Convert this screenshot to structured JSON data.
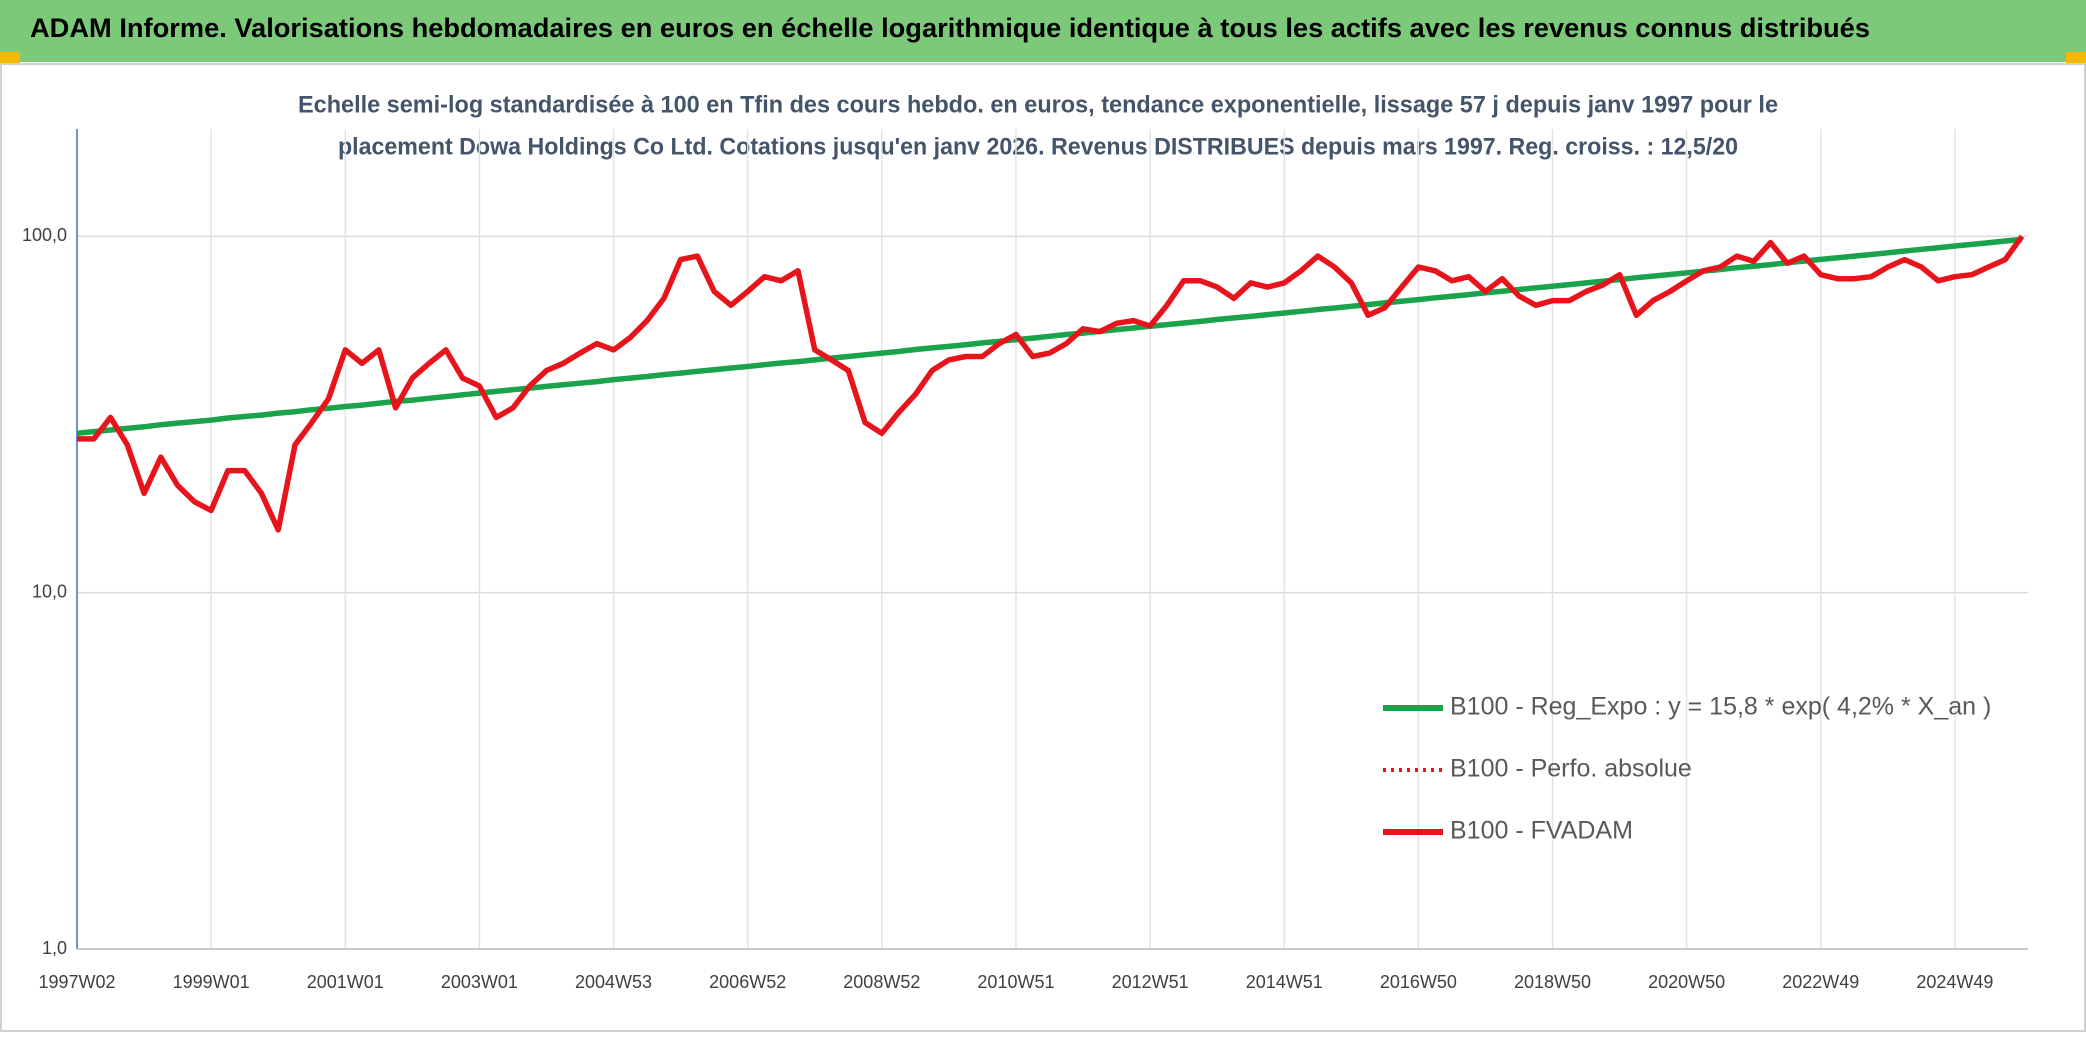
{
  "chart_data": {
    "type": "line",
    "title": "ADAM Informe. Valorisations hebdomadaires en euros en échelle logarithmique identique à tous les actifs avec les revenus connus distribués",
    "subtitle": [
      "Echelle semi-log standardisée à 100 en Tfin des cours hebdo. en euros, tendance exponentielle, lissage 57 j depuis janv 1997 pour le",
      "placement Dowa Holdings Co Ltd. Cotations jusqu'en janv 2026. Revenus DISTRIBUES depuis mars 1997. Reg. croiss. : 12,5/20"
    ],
    "log_y": true,
    "grid": true,
    "ylim": [
      1,
      200
    ],
    "yticks": [
      {
        "value": 1,
        "label": "1,0"
      },
      {
        "value": 10,
        "label": "10,0"
      },
      {
        "value": 100,
        "label": "100,0"
      }
    ],
    "categories": [
      "1997W02",
      null,
      null,
      null,
      null,
      null,
      null,
      null,
      "1999W01",
      null,
      null,
      null,
      null,
      null,
      null,
      null,
      "2001W01",
      null,
      null,
      null,
      null,
      null,
      null,
      null,
      "2003W01",
      null,
      null,
      null,
      null,
      null,
      null,
      null,
      "2004W53",
      null,
      null,
      null,
      null,
      null,
      null,
      null,
      "2006W52",
      null,
      null,
      null,
      null,
      null,
      null,
      null,
      "2008W52",
      null,
      null,
      null,
      null,
      null,
      null,
      null,
      "2010W51",
      null,
      null,
      null,
      null,
      null,
      null,
      null,
      "2012W51",
      null,
      null,
      null,
      null,
      null,
      null,
      null,
      "2014W51",
      null,
      null,
      null,
      null,
      null,
      null,
      null,
      "2016W50",
      null,
      null,
      null,
      null,
      null,
      null,
      null,
      "2018W50",
      null,
      null,
      null,
      null,
      null,
      null,
      null,
      "2020W50",
      null,
      null,
      null,
      null,
      null,
      null,
      null,
      "2022W49",
      null,
      null,
      null,
      null,
      null,
      null,
      null,
      "2024W49",
      null,
      null,
      null,
      null
    ],
    "series": [
      {
        "name": "B100 - Reg_Expo : y = 15,8 * exp( 4,2% *  X_an )",
        "color": "#1aa34a",
        "style": "solid",
        "values": [
          28.0,
          28.3,
          28.6,
          28.9,
          29.2,
          29.6,
          29.9,
          30.2,
          30.5,
          30.9,
          31.2,
          31.5,
          31.9,
          32.2,
          32.6,
          32.9,
          33.3,
          33.6,
          34.0,
          34.4,
          34.7,
          35.1,
          35.5,
          35.9,
          36.3,
          36.7,
          37.1,
          37.5,
          37.9,
          38.3,
          38.7,
          39.1,
          39.6,
          40.0,
          40.4,
          40.9,
          41.3,
          41.8,
          42.2,
          42.7,
          43.1,
          43.6,
          44.1,
          44.5,
          45.0,
          45.5,
          46.0,
          46.5,
          47.0,
          47.5,
          48.1,
          48.6,
          49.1,
          49.6,
          50.2,
          50.7,
          51.3,
          51.8,
          52.4,
          53.0,
          53.5,
          54.1,
          54.7,
          55.3,
          55.9,
          56.5,
          57.1,
          57.7,
          58.4,
          59.0,
          59.6,
          60.3,
          60.9,
          61.6,
          62.3,
          62.9,
          63.6,
          64.3,
          65.0,
          65.7,
          66.4,
          67.2,
          67.9,
          68.6,
          69.4,
          70.1,
          70.9,
          71.7,
          72.4,
          73.2,
          74.0,
          74.8,
          75.6,
          76.5,
          77.3,
          78.1,
          79.0,
          79.8,
          80.7,
          81.6,
          82.4,
          83.3,
          84.3,
          85.2,
          86.1,
          87.0,
          88.0,
          88.9,
          89.9,
          90.9,
          91.9,
          92.9,
          93.9,
          94.9,
          95.9,
          97.0,
          98.0
        ]
      },
      {
        "name": "B100 - Perfo. absolue",
        "color": "#e8141b",
        "style": "dotted",
        "values": [
          null,
          null,
          null,
          null,
          null,
          null,
          null,
          null,
          null,
          null,
          null,
          null,
          null,
          null,
          null,
          null,
          null,
          null,
          null,
          null,
          null,
          null,
          null,
          null,
          null,
          null,
          null,
          null,
          null,
          null,
          null,
          null,
          null,
          null,
          null,
          null,
          null,
          null,
          null,
          null,
          null,
          null,
          null,
          null,
          null,
          null,
          null,
          null,
          null,
          null,
          null,
          null,
          null,
          null,
          null,
          null,
          null,
          null,
          null,
          null,
          null,
          null,
          null,
          null,
          null,
          null,
          null,
          null,
          null,
          null,
          null,
          null,
          null,
          null,
          null,
          null,
          null,
          null,
          null,
          null,
          null,
          null,
          null,
          null,
          null,
          null,
          null,
          null,
          null,
          null,
          null,
          null,
          null,
          null,
          null,
          null,
          null,
          null,
          null,
          null,
          null,
          null,
          null,
          null,
          null,
          null,
          null,
          null,
          null,
          null,
          null,
          null,
          null,
          null,
          null,
          null,
          null
        ]
      },
      {
        "name": "B100 - FVADAM",
        "color": "#e8141b",
        "style": "solid",
        "values": [
          27,
          27,
          31,
          26,
          19,
          24,
          20,
          18,
          17,
          22,
          22,
          19,
          15,
          26,
          30,
          35,
          48,
          44,
          48,
          33,
          40,
          44,
          48,
          40,
          38,
          31,
          33,
          38,
          42,
          44,
          47,
          50,
          48,
          52,
          58,
          67,
          86,
          88,
          70,
          64,
          70,
          77,
          75,
          80,
          48,
          45,
          42,
          30,
          28,
          32,
          36,
          42,
          45,
          46,
          46,
          50,
          53,
          46,
          47,
          50,
          55,
          54,
          57,
          58,
          56,
          64,
          75,
          75,
          72,
          67,
          74,
          72,
          74,
          80,
          88,
          82,
          74,
          60,
          63,
          72,
          82,
          80,
          75,
          77,
          70,
          76,
          68,
          64,
          66,
          66,
          70,
          73,
          78,
          60,
          66,
          70,
          75,
          80,
          82,
          88,
          85,
          96,
          84,
          88,
          78,
          76,
          76,
          77,
          82,
          86,
          82,
          75,
          77,
          78,
          82,
          86,
          100
        ]
      }
    ]
  }
}
